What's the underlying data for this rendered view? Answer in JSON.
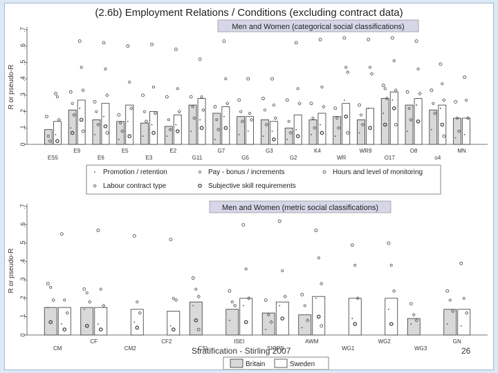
{
  "slide": {
    "title": "(2.6b) Employment Relations / Conditions (excluding contract data)",
    "footer_text": "Stratification - Stirling 2007",
    "page_number": "26"
  },
  "colors": {
    "britain": "#d9d9d9",
    "sweden": "#ffffff",
    "box_fill": "#d6d6e8"
  },
  "chart_data": [
    {
      "type": "bar",
      "title": "Men and Women (categorical social classifications)",
      "ylabel": "R or pseudo-R",
      "ylim": [
        0,
        0.7
      ],
      "yticks": [
        "0",
        ".1",
        ".2",
        ".3",
        ".4",
        ".5",
        ".6",
        ".7"
      ],
      "categories": [
        "ES5",
        "E9",
        "E6",
        "E5",
        "E3",
        "E2",
        "G11",
        "G7",
        "G5",
        "G3",
        "G2",
        "K4",
        "WR",
        "WR9",
        "O17",
        "O8",
        "o4",
        "MN"
      ],
      "series": [
        {
          "name": "Britain",
          "values": [
            0.09,
            0.21,
            0.15,
            0.14,
            0.13,
            0.11,
            0.24,
            0.19,
            0.17,
            0.15,
            0.1,
            0.15,
            0.17,
            0.15,
            0.28,
            0.24,
            0.21,
            0.16
          ]
        },
        {
          "name": "Sweden",
          "values": [
            0.14,
            0.27,
            0.25,
            0.24,
            0.2,
            0.18,
            0.28,
            0.23,
            0.17,
            0.14,
            0.18,
            0.19,
            0.25,
            0.22,
            0.32,
            0.28,
            0.24,
            0.16
          ]
        }
      ],
      "points": [
        [
          [
            0.17,
            0.05,
            0.02
          ],
          [
            0.31,
            0.29,
            0.15,
            0.06,
            0.02
          ]
        ],
        [
          [
            0.32,
            0.25,
            0.18,
            0.1,
            0.07
          ],
          [
            0.63,
            0.47,
            0.33,
            0.22,
            0.15,
            0.08
          ]
        ],
        [
          [
            0.26,
            0.2,
            0.12,
            0.06
          ],
          [
            0.62,
            0.46,
            0.3,
            0.17,
            0.11,
            0.07
          ]
        ],
        [
          [
            0.18,
            0.13,
            0.08,
            0.03
          ],
          [
            0.6,
            0.38,
            0.22,
            0.14,
            0.05
          ]
        ],
        [
          [
            0.3,
            0.2,
            0.14,
            0.05
          ],
          [
            0.61,
            0.35,
            0.19,
            0.12,
            0.07
          ]
        ],
        [
          [
            0.29,
            0.15,
            0.09,
            0.05
          ],
          [
            0.58,
            0.34,
            0.2,
            0.12,
            0.08
          ]
        ],
        [
          [
            0.29,
            0.23,
            0.16,
            0.08
          ],
          [
            0.52,
            0.29,
            0.21,
            0.15,
            0.1
          ]
        ],
        [
          [
            0.23,
            0.15,
            0.09,
            0.03
          ],
          [
            0.63,
            0.4,
            0.25,
            0.17,
            0.1
          ]
        ],
        [
          [
            0.27,
            0.2,
            0.14,
            0.06
          ],
          [
            0.4,
            0.19,
            0.15,
            0.08
          ]
        ],
        [
          [
            0.28,
            0.21,
            0.12,
            0.05
          ],
          [
            0.4,
            0.24,
            0.16,
            0.08,
            0.03
          ]
        ],
        [
          [
            0.27,
            0.14,
            0.07,
            0.03
          ],
          [
            0.62,
            0.34,
            0.25,
            0.09,
            0.05
          ]
        ],
        [
          [
            0.25,
            0.16,
            0.1,
            0.06
          ],
          [
            0.64,
            0.35,
            0.23,
            0.12,
            0.07
          ]
        ],
        [
          [
            0.22,
            0.16,
            0.1,
            0.05
          ],
          [
            0.65,
            0.47,
            0.44,
            0.27,
            0.17,
            0.07
          ]
        ],
        [
          [
            0.24,
            0.18,
            0.12,
            0.07
          ],
          [
            0.64,
            0.47,
            0.43,
            0.22,
            0.1
          ]
        ],
        [
          [
            0.36,
            0.34,
            0.28,
            0.19,
            0.12
          ],
          [
            0.65,
            0.51,
            0.33,
            0.27,
            0.22,
            0.12
          ]
        ],
        [
          [
            0.32,
            0.22,
            0.15,
            0.08
          ],
          [
            0.63,
            0.46,
            0.31,
            0.24,
            0.14
          ]
        ],
        [
          [
            0.33,
            0.25,
            0.19,
            0.09
          ],
          [
            0.49,
            0.37,
            0.27,
            0.22,
            0.12,
            0.05
          ]
        ],
        [
          [
            0.26,
            0.16,
            0.08,
            0.04
          ],
          [
            0.41,
            0.27,
            0.16,
            0.06
          ]
        ]
      ],
      "legend": [
        {
          "marker": "dot",
          "label": "Promotion / retention"
        },
        {
          "marker": "small-circle",
          "label": "Pay - bonus / increments"
        },
        {
          "marker": "circle",
          "label": "Hours and level of monitoring"
        },
        {
          "marker": "diamond",
          "label": "Labour contract type"
        },
        {
          "marker": "ring",
          "label": "Subjective skill requirements"
        }
      ]
    },
    {
      "type": "bar",
      "title": "Men and Women (metric social classifications)",
      "ylabel": "R or pseudo-R",
      "ylim": [
        0,
        0.7
      ],
      "yticks": [
        "0",
        ".1",
        ".2",
        ".3",
        ".4",
        ".5",
        ".6",
        ".7"
      ],
      "categories": [
        "CM",
        "CF",
        "CM2",
        "CF2",
        "CSI",
        "ISEI",
        "SIOPS",
        "AWM",
        "WG1",
        "WG2",
        "WG3",
        "GN"
      ],
      "series": [
        {
          "name": "Britain",
          "values": [
            0.15,
            0.15,
            null,
            null,
            0.18,
            0.14,
            0.12,
            0.11,
            null,
            null,
            0.09,
            0.14
          ]
        },
        {
          "name": "Sweden",
          "values": [
            0.15,
            0.15,
            0.14,
            0.13,
            null,
            0.2,
            0.18,
            0.21,
            0.2,
            0.2,
            null,
            0.14
          ]
        }
      ],
      "points": [
        [
          [
            0.28,
            0.26,
            0.19,
            0.15,
            0.07
          ],
          [
            0.55,
            0.19,
            0.12,
            0.06,
            0.03
          ]
        ],
        [
          [
            0.25,
            0.23,
            0.18,
            0.14,
            0.05
          ],
          [
            0.57,
            0.25,
            0.16,
            0.06,
            0.03
          ]
        ],
        [
          [],
          [
            0.54,
            0.18,
            0.12,
            0.07,
            0.04
          ]
        ],
        [
          [],
          [
            0.52,
            0.2,
            0.19,
            0.05,
            0.03
          ]
        ],
        [
          [
            0.31,
            0.25,
            0.21,
            0.16,
            0.08,
            0.03
          ],
          []
        ],
        [
          [
            0.24,
            0.18,
            0.16,
            0.08
          ],
          [
            0.6,
            0.36,
            0.2,
            0.16,
            0.07
          ]
        ],
        [
          [
            0.19,
            0.11,
            0.07,
            0.03
          ],
          [
            0.62,
            0.35,
            0.21,
            0.16,
            0.09
          ]
        ],
        [
          [
            0.22,
            0.16,
            0.08,
            0.04
          ],
          [
            0.57,
            0.42,
            0.28,
            0.2,
            0.1,
            0.05
          ]
        ],
        [
          [],
          [
            0.49,
            0.38,
            0.2,
            0.09,
            0.06
          ]
        ],
        [
          [],
          [
            0.5,
            0.38,
            0.24,
            0.14,
            0.06
          ]
        ],
        [
          [
            0.17,
            0.11,
            0.08,
            0.06
          ],
          []
        ],
        [
          [
            0.24,
            0.19,
            0.13,
            0.06
          ],
          [
            0.39,
            0.2,
            0.12,
            0.05
          ]
        ]
      ],
      "legend": [
        {
          "series": "Britain",
          "label": "Britain"
        },
        {
          "series": "Sweden",
          "label": "Sweden"
        }
      ]
    }
  ]
}
